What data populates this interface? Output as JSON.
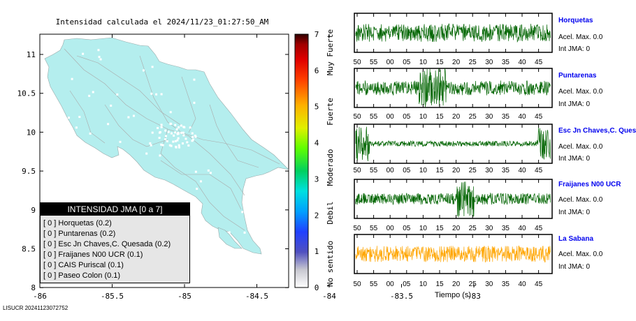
{
  "map": {
    "title": "Intensidad calculada el 2024/11/23_01:27:50_AM",
    "lon_ticks": [
      "-86",
      "-85.5",
      "-85",
      "-84.5",
      "-84",
      "-83.5",
      "-83"
    ],
    "lat_ticks": [
      "11",
      "10.5",
      "10",
      "9.5",
      "9",
      "8.5",
      "8"
    ],
    "land_color": "#b4eeee"
  },
  "colorbar": {
    "ticks": [
      "7",
      "6",
      "5",
      "4",
      "3",
      "2",
      "1",
      "0"
    ],
    "labels": [
      "Muy Fuerte",
      "Fuerte",
      "Moderado",
      "Debil",
      "No sentido"
    ]
  },
  "legend": {
    "title": "INTENSIDAD JMA [0 a 7]",
    "items": [
      "[ 0 ]  Horquetas (0.2)",
      "[ 0 ]  Puntarenas (0.2)",
      "[ 0 ]  Esc Jn Chaves,C. Quesada (0.2)",
      "[ 0 ]  Fraijanes N00 UCR (0.1)",
      "[ 0 ]  CAIS Puriscal (0.1)",
      "[ 0 ]  Paseo Colon (0.1)"
    ]
  },
  "stations": [
    {
      "name": "Horquetas",
      "acel": "Acel. Max. 0.0",
      "int": "Int JMA: 0",
      "color": "#006400",
      "ticks": [
        "50",
        "55",
        "00",
        "05",
        "10",
        "15",
        "20",
        "25",
        "30",
        "35",
        "40",
        "45"
      ]
    },
    {
      "name": "Puntarenas",
      "acel": "Acel. Max. 0.0",
      "int": "Int JMA: 0",
      "color": "#006400",
      "ticks": [
        "50",
        "55",
        "00",
        "05",
        "10",
        "15",
        "20",
        "25",
        "30",
        "35",
        "40",
        "45"
      ]
    },
    {
      "name": "Esc Jn Chaves,C. Ques",
      "acel": "Acel. Max. 0.0",
      "int": "Int JMA: 0",
      "color": "#006400",
      "ticks": [
        "50",
        "55",
        "00",
        "05",
        "10",
        "15",
        "20",
        "25",
        "30",
        "35",
        "40",
        "45"
      ]
    },
    {
      "name": "Fraijanes N00 UCR",
      "acel": "Acel. Max. 0.0",
      "int": "Int JMA: 0",
      "color": "#006400",
      "ticks": [
        "50",
        "55",
        "00",
        "05",
        "10",
        "15",
        "20",
        "25",
        "30",
        "35",
        "40",
        "45"
      ]
    },
    {
      "name": "La Sabana",
      "acel": "Acel. Max. 0.0",
      "int": "Int JMA: 0",
      "color": "#ffa500",
      "ticks": [
        "50",
        "55",
        "00",
        "05",
        "10",
        "15",
        "20",
        "25",
        "30",
        "35",
        "40",
        "45"
      ]
    }
  ],
  "xaxis_label": "Tiempo (s)",
  "footer": "LISUCR 20241123072752"
}
